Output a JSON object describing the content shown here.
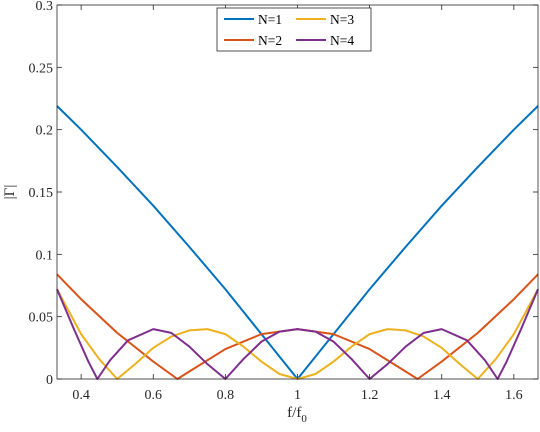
{
  "chart_data": {
    "type": "line",
    "xlabel": "f/f",
    "xlabel_sub": "0",
    "ylabel": "|Γ|",
    "xlim": [
      0.333,
      1.667
    ],
    "ylim": [
      0,
      0.3
    ],
    "xticks": [
      0.4,
      0.6,
      0.8,
      1,
      1.2,
      1.4,
      1.6
    ],
    "xtick_labels": [
      "0.4",
      "0.6",
      "0.8",
      "1",
      "1.2",
      "1.4",
      "1.6"
    ],
    "yticks": [
      0,
      0.05,
      0.1,
      0.15,
      0.2,
      0.25,
      0.3
    ],
    "ytick_labels": [
      "0",
      "0.05",
      "0.1",
      "0.15",
      "0.2",
      "0.25",
      "0.3"
    ],
    "grid": false,
    "legend_position": "top-center",
    "series": [
      {
        "name": "N=1",
        "color": "#0072BD",
        "x": [
          0.333,
          0.4,
          0.5,
          0.6,
          0.7,
          0.8,
          0.9,
          1.0,
          1.1,
          1.2,
          1.3,
          1.4,
          1.5,
          1.6,
          1.667
        ],
        "y": [
          0.219,
          0.2,
          0.17,
          0.139,
          0.106,
          0.072,
          0.036,
          0.0,
          0.036,
          0.072,
          0.106,
          0.139,
          0.17,
          0.2,
          0.219
        ]
      },
      {
        "name": "N=2",
        "color": "#D95319",
        "x": [
          0.333,
          0.4,
          0.5,
          0.6,
          0.667,
          0.7,
          0.8,
          0.9,
          1.0,
          1.1,
          1.2,
          1.3,
          1.333,
          1.4,
          1.5,
          1.6,
          1.667
        ],
        "y": [
          0.084,
          0.064,
          0.037,
          0.014,
          0.0,
          0.006,
          0.024,
          0.036,
          0.04,
          0.036,
          0.024,
          0.006,
          0.0,
          0.014,
          0.037,
          0.064,
          0.084
        ]
      },
      {
        "name": "N=3",
        "color": "#EDB120",
        "x": [
          0.333,
          0.4,
          0.45,
          0.5,
          0.55,
          0.6,
          0.65,
          0.7,
          0.75,
          0.8,
          0.85,
          0.9,
          0.95,
          1.0,
          1.05,
          1.1,
          1.15,
          1.2,
          1.25,
          1.3,
          1.35,
          1.4,
          1.45,
          1.5,
          1.55,
          1.6,
          1.667
        ],
        "y": [
          0.072,
          0.036,
          0.016,
          0.0,
          0.012,
          0.025,
          0.034,
          0.039,
          0.04,
          0.036,
          0.026,
          0.014,
          0.004,
          0.0,
          0.004,
          0.014,
          0.026,
          0.036,
          0.04,
          0.039,
          0.034,
          0.025,
          0.012,
          0.0,
          0.016,
          0.036,
          0.072
        ]
      },
      {
        "name": "N=4",
        "color": "#7E2F8E",
        "x": [
          0.333,
          0.38,
          0.42,
          0.445,
          0.48,
          0.53,
          0.6,
          0.65,
          0.7,
          0.75,
          0.8,
          0.85,
          0.9,
          0.95,
          1.0,
          1.05,
          1.1,
          1.15,
          1.2,
          1.25,
          1.3,
          1.35,
          1.4,
          1.47,
          1.52,
          1.555,
          1.58,
          1.62,
          1.667
        ],
        "y": [
          0.072,
          0.04,
          0.014,
          0.0,
          0.015,
          0.031,
          0.04,
          0.037,
          0.026,
          0.012,
          0.0,
          0.016,
          0.03,
          0.038,
          0.04,
          0.038,
          0.03,
          0.016,
          0.0,
          0.012,
          0.026,
          0.037,
          0.04,
          0.031,
          0.015,
          0.0,
          0.014,
          0.04,
          0.072
        ]
      }
    ],
    "legend_entries": [
      "N=1",
      "N=3",
      "N=2",
      "N=4"
    ]
  }
}
